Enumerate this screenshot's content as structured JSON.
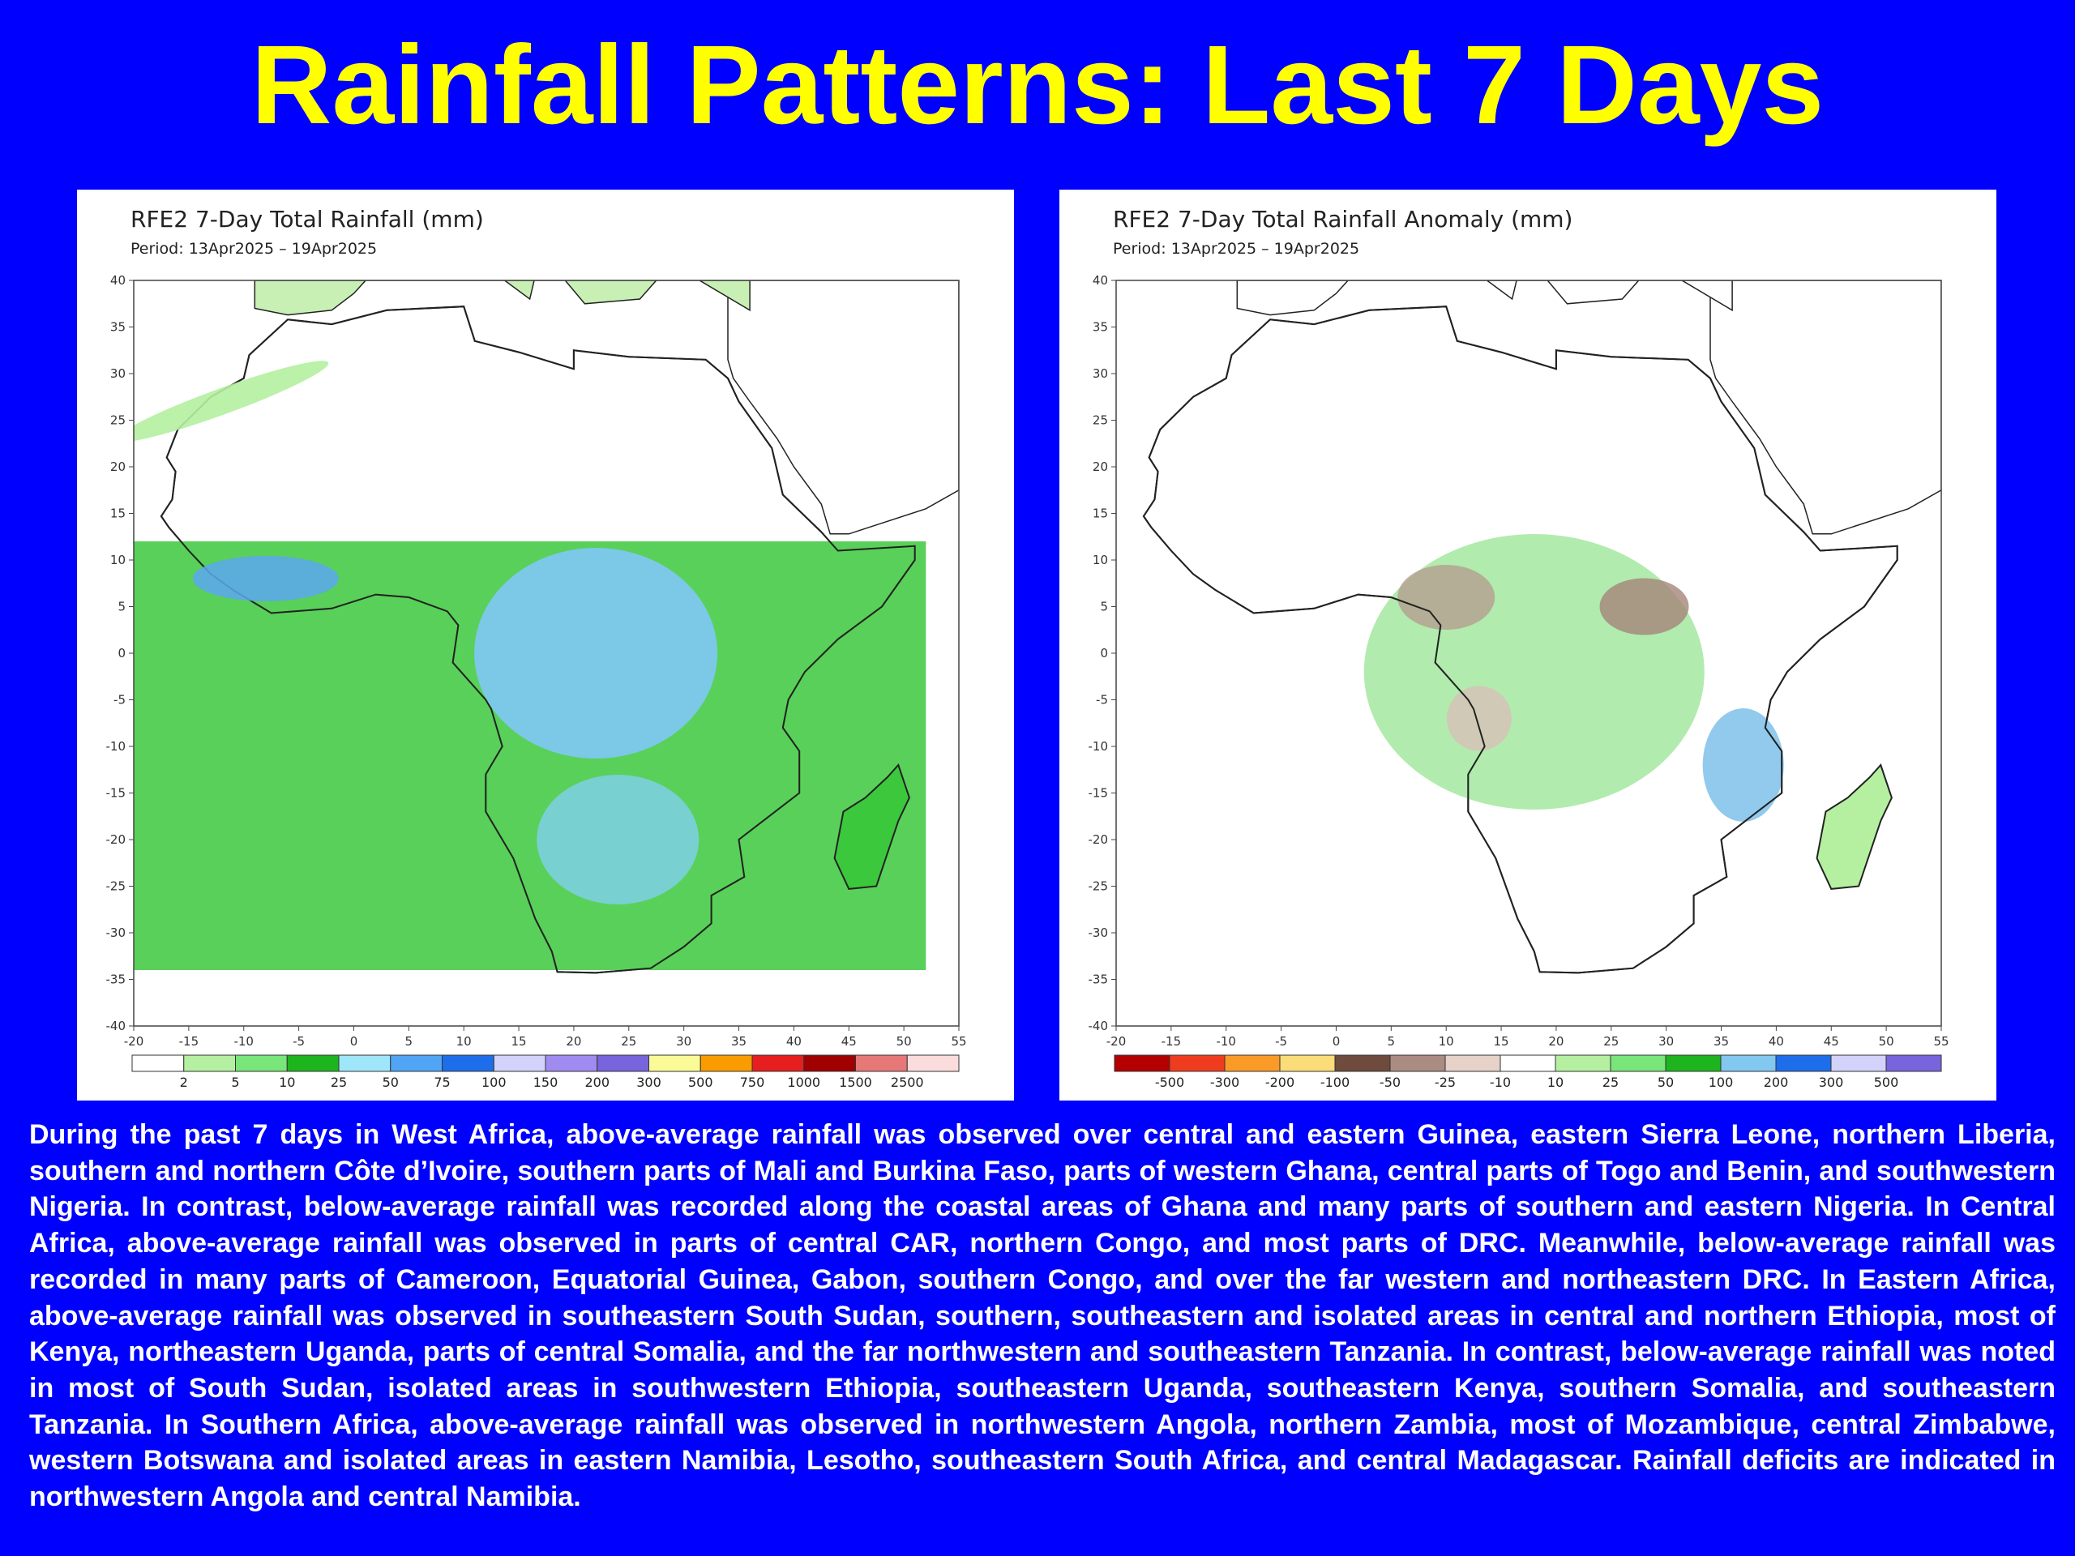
{
  "slide": {
    "title": "Rainfall Patterns: Last 7 Days",
    "body": "During the past 7 days in West Africa, above-average rainfall was observed over central and eastern Guinea, eastern Sierra Leone, northern Liberia, southern and northern Côte d’Ivoire, southern parts of Mali and Burkina Faso, parts of western Ghana, central parts of Togo and Benin, and southwestern Nigeria. In contrast, below-average rainfall was recorded along the coastal areas of Ghana and many parts of southern and eastern Nigeria. In Central Africa, above-average rainfall was observed in parts of central CAR, northern Congo, and most parts of DRC. Meanwhile, below-average rainfall was recorded in many parts of Cameroon, Equatorial Guinea, Gabon, southern Congo, and over the far western and northeastern DRC. In Eastern Africa, above-average rainfall was observed in southeastern South Sudan, southern, southeastern and isolated areas in central and northern Ethiopia, most of Kenya, northeastern Uganda, parts of central Somalia, and the far northwestern and southeastern Tanzania. In contrast, below-average rainfall was noted in most of South Sudan, isolated areas in southwestern Ethiopia, southeastern Uganda, southeastern Kenya, southern Somalia, and southeastern Tanzania. In Southern Africa, above-average rainfall was observed in northwestern Angola, northern Zambia, most of Mozambique, central Zimbabwe, western Botswana and isolated areas in eastern Namibia, Lesotho, southeastern South Africa, and central Madagascar.  Rainfall deficits are indicated in northwestern Angola and central Namibia."
  },
  "maps": [
    {
      "title": "RFE2 7-Day Total Rainfall (mm)",
      "period_label": "Period:",
      "period": "13Apr2025 – 19Apr2025",
      "lat_ticks": [
        "40",
        "35",
        "30",
        "25",
        "20",
        "15",
        "10",
        "5",
        "0",
        "-5",
        "-10",
        "-15",
        "-20",
        "-25",
        "-30",
        "-35",
        "-40"
      ],
      "lon_ticks": [
        "-20",
        "-15",
        "-10",
        "-5",
        "0",
        "5",
        "10",
        "15",
        "20",
        "25",
        "30",
        "35",
        "40",
        "45",
        "50",
        "55"
      ],
      "legend_labels": [
        "2",
        "5",
        "10",
        "25",
        "50",
        "75",
        "100",
        "150",
        "200",
        "300",
        "500",
        "750",
        "1000",
        "1500",
        "2500"
      ],
      "legend_colors": [
        "#ffffff",
        "#b4f0a0",
        "#78e678",
        "#1eb41e",
        "#a0e6fa",
        "#50a5f5",
        "#1e6eeb",
        "#d2d2fa",
        "#a08cf0",
        "#7864dc",
        "#fafa96",
        "#fa9b00",
        "#e61e1e",
        "#a00000",
        "#e67878",
        "#fadcdc"
      ]
    },
    {
      "title": "RFE2 7-Day Total Rainfall Anomaly (mm)",
      "period_label": "Period:",
      "period": "13Apr2025 – 19Apr2025",
      "lat_ticks": [
        "40",
        "35",
        "30",
        "25",
        "20",
        "15",
        "10",
        "5",
        "0",
        "-5",
        "-10",
        "-15",
        "-20",
        "-25",
        "-30",
        "-35",
        "-40"
      ],
      "lon_ticks": [
        "-20",
        "-15",
        "-10",
        "-5",
        "0",
        "5",
        "10",
        "15",
        "20",
        "25",
        "30",
        "35",
        "40",
        "45",
        "50",
        "55"
      ],
      "legend_labels": [
        "-500",
        "-300",
        "-200",
        "-100",
        "-50",
        "-25",
        "-10",
        "10",
        "25",
        "50",
        "100",
        "200",
        "300",
        "500"
      ],
      "legend_colors": [
        "#b40000",
        "#f03c1e",
        "#fa9b28",
        "#fadc78",
        "#6e4b3c",
        "#aa8c82",
        "#e6d2c8",
        "#ffffff",
        "#b4f0a0",
        "#78e678",
        "#1eb41e",
        "#82c8f0",
        "#1e6eeb",
        "#d2d2fa",
        "#7864dc"
      ]
    }
  ]
}
